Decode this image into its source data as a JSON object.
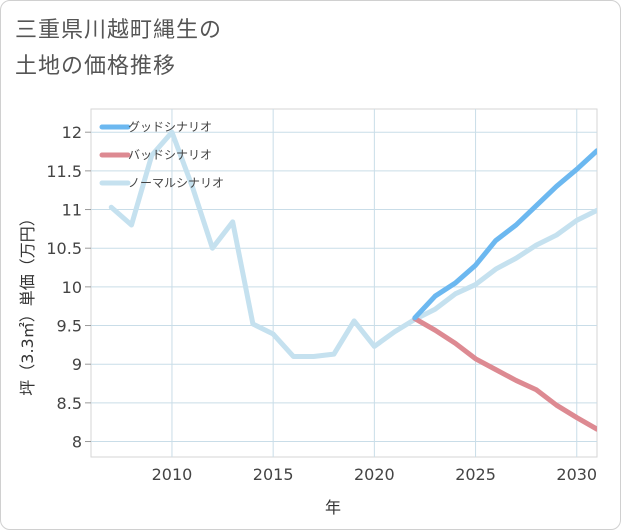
{
  "title_line1": "三重県川越町縄生の",
  "title_line2": "土地の価格推移",
  "chart_data": {
    "type": "line",
    "xlabel": "年",
    "ylabel": "坪（3.3㎡）単価（万円）",
    "xlim": [
      2006,
      2031
    ],
    "ylim": [
      7.8,
      12.3
    ],
    "xticks": [
      2010,
      2015,
      2020,
      2025,
      2030
    ],
    "xtick_labels": [
      "2010",
      "2015",
      "2020",
      "2025",
      "2030"
    ],
    "yticks": [
      8,
      8.5,
      9,
      9.5,
      10,
      10.5,
      11,
      11.5,
      12
    ],
    "ytick_labels": [
      "8",
      "8.5",
      "9",
      "9.5",
      "10",
      "10.5",
      "11",
      "11.5",
      "12"
    ],
    "grid": true,
    "legend_position": "top-left",
    "series": [
      {
        "name": "グッドシナリオ",
        "color": "#6cb8f0",
        "x": [
          2022,
          2023,
          2024,
          2025,
          2026,
          2027,
          2028,
          2029,
          2030,
          2031
        ],
        "values": [
          9.6,
          9.88,
          10.05,
          10.28,
          10.6,
          10.8,
          11.05,
          11.3,
          11.52,
          11.76
        ]
      },
      {
        "name": "バッドシナリオ",
        "color": "#dd8a92",
        "x": [
          2022,
          2023,
          2024,
          2025,
          2026,
          2027,
          2028,
          2029,
          2030,
          2031
        ],
        "values": [
          9.59,
          9.44,
          9.27,
          9.07,
          8.93,
          8.79,
          8.67,
          8.47,
          8.31,
          8.16
        ]
      },
      {
        "name": "ノーマルシナリオ",
        "color": "#c5e1ef",
        "x": [
          2007,
          2008,
          2009,
          2010,
          2011,
          2012,
          2013,
          2014,
          2015,
          2016,
          2017,
          2018,
          2019,
          2020,
          2021,
          2022,
          2023,
          2024,
          2025,
          2026,
          2027,
          2028,
          2029,
          2030,
          2031
        ],
        "values": [
          11.03,
          10.8,
          11.7,
          12.0,
          11.3,
          10.5,
          10.84,
          9.52,
          9.39,
          9.1,
          9.1,
          9.13,
          9.56,
          9.23,
          9.42,
          9.58,
          9.71,
          9.91,
          10.03,
          10.23,
          10.37,
          10.54,
          10.67,
          10.86,
          10.99
        ]
      }
    ]
  }
}
